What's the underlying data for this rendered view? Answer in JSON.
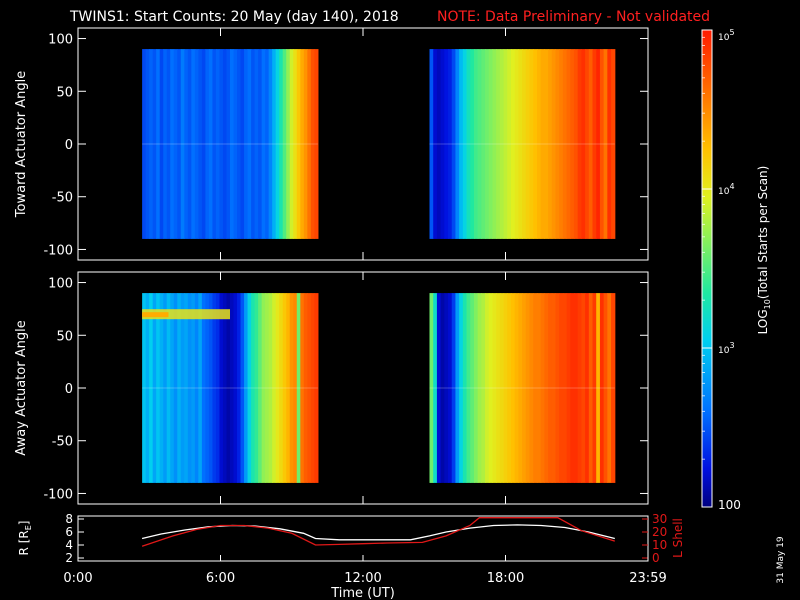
{
  "header": {
    "title": "TWINS1: Start Counts: 20 May (day 140), 2018",
    "note": "NOTE: Data Preliminary - Not validated"
  },
  "colors": {
    "background": "#000000",
    "note": "#ff2020",
    "axis": "#ffffff",
    "r_line": "#ffffff",
    "lshell_line": "#e01818"
  },
  "panels": {
    "toward": {
      "ylabel": "Toward Actuator Angle"
    },
    "away": {
      "ylabel": "Away Actuator Angle"
    },
    "orbit": {
      "ylabel": "R [R",
      "ylabel_sub": "E",
      "ylabel_end": "]",
      "y2label": "L Shell"
    }
  },
  "colorbar": {
    "label_pre": "LOG",
    "label_sub": "10",
    "label_post": "(Total Starts per Scan)",
    "ticks": [
      {
        "text": "100",
        "value": 100,
        "exp": ""
      },
      {
        "text": "10",
        "value": 1000,
        "exp": "3"
      },
      {
        "text": "10",
        "value": 10000,
        "exp": "4"
      },
      {
        "text": "10",
        "value": 100000,
        "exp": "5"
      }
    ]
  },
  "footer": {
    "stamp": "31 May 19"
  },
  "chart_data": [
    {
      "type": "heatmap",
      "title": "TWINS1: Start Counts: 20 May (day 140), 2018",
      "ylabel": "Toward Actuator Angle",
      "xlabel": "Time (UT)",
      "xlim": [
        0,
        24
      ],
      "ylim": [
        -110,
        110
      ],
      "yticks": [
        "-100",
        "-50",
        "0",
        "50",
        "100"
      ],
      "xticks": [
        "0:00",
        "6:00",
        "12:00",
        "18:00",
        "23:59"
      ],
      "color_scale": "log",
      "clim": [
        100,
        100000
      ],
      "angle_range": [
        -90,
        90
      ],
      "data_intervals": [
        {
          "start_hour": 2.7,
          "end_hour": 10.1,
          "time_profile_log_counts": [
            2.45,
            2.5,
            2.55,
            2.5,
            2.6,
            2.45,
            2.55,
            2.5,
            2.6,
            2.55,
            2.5,
            2.65,
            2.55,
            2.5,
            2.6,
            2.55,
            2.5,
            2.45,
            2.55,
            2.6,
            2.5,
            2.55,
            2.5,
            2.45,
            2.5,
            2.6,
            2.55,
            2.5,
            2.45,
            2.55,
            2.6,
            2.5,
            2.55,
            2.5,
            2.6,
            2.55,
            2.7,
            2.9,
            3.1,
            3.3,
            3.5,
            3.7,
            3.9,
            4.05,
            4.2,
            4.35,
            4.45,
            4.6,
            4.75,
            4.8
          ]
        },
        {
          "start_hour": 14.8,
          "end_hour": 22.6,
          "time_profile_log_counts": [
            2.5,
            2.2,
            2.15,
            2.2,
            2.25,
            2.3,
            2.45,
            2.7,
            2.95,
            3.1,
            3.25,
            3.35,
            3.45,
            3.5,
            3.55,
            3.6,
            3.65,
            3.7,
            3.75,
            3.8,
            3.85,
            3.9,
            3.95,
            4.0,
            4.05,
            4.1,
            4.15,
            4.2,
            4.25,
            4.3,
            4.35,
            4.35,
            4.4,
            4.45,
            4.5,
            4.55,
            4.6,
            4.65,
            4.7,
            4.75,
            4.85,
            4.9,
            4.8,
            4.7,
            4.85,
            4.95,
            4.75,
            4.6,
            4.9,
            4.8
          ]
        }
      ]
    },
    {
      "type": "heatmap",
      "ylabel": "Away Actuator Angle",
      "xlabel": "Time (UT)",
      "xlim": [
        0,
        24
      ],
      "ylim": [
        -110,
        110
      ],
      "yticks": [
        "-100",
        "-50",
        "0",
        "50",
        "100"
      ],
      "xticks": [
        "0:00",
        "6:00",
        "12:00",
        "18:00",
        "23:59"
      ],
      "color_scale": "log",
      "clim": [
        100,
        100000
      ],
      "angle_range": [
        -90,
        90
      ],
      "data_intervals": [
        {
          "start_hour": 2.7,
          "end_hour": 10.1,
          "time_profile_log_counts": [
            3.0,
            2.9,
            3.05,
            2.85,
            3.0,
            2.9,
            2.8,
            2.95,
            2.85,
            2.75,
            2.9,
            2.8,
            2.85,
            2.75,
            2.8,
            2.7,
            2.85,
            2.6,
            2.55,
            2.5,
            2.4,
            2.35,
            2.2,
            2.15,
            2.1,
            2.15,
            2.2,
            2.3,
            2.5,
            2.8,
            3.1,
            3.3,
            3.4,
            3.55,
            3.7,
            3.75,
            3.8,
            3.9,
            4.0,
            4.1,
            4.2,
            4.3,
            4.45,
            4.5,
            3.6,
            4.6,
            4.7,
            4.75,
            4.8,
            4.85
          ],
          "bright_band_angle_deg": 70
        },
        {
          "start_hour": 14.8,
          "end_hour": 22.6,
          "time_profile_log_counts": [
            3.6,
            3.2,
            2.2,
            2.1,
            2.15,
            2.2,
            2.4,
            2.8,
            3.1,
            3.3,
            3.45,
            3.55,
            3.65,
            3.75,
            3.8,
            3.9,
            3.95,
            4.0,
            4.05,
            4.1,
            4.15,
            4.2,
            4.25,
            4.3,
            4.35,
            4.4,
            4.45,
            4.5,
            4.55,
            4.55,
            4.6,
            4.65,
            4.7,
            4.7,
            4.75,
            4.8,
            4.8,
            4.85,
            4.9,
            4.9,
            4.85,
            4.8,
            4.9,
            4.7,
            4.85,
            4.3,
            4.9,
            4.75,
            4.6,
            4.8
          ]
        }
      ]
    },
    {
      "type": "line",
      "ylabel": "R [RE]",
      "y2label": "L Shell",
      "xlabel": "Time (UT)",
      "xlim": [
        0,
        24
      ],
      "ylim": [
        2,
        8
      ],
      "yticks": [
        "2",
        "4",
        "6",
        "8"
      ],
      "y2lim": [
        0,
        30
      ],
      "y2ticks": [
        "0",
        "10",
        "20",
        "30"
      ],
      "xticks": [
        "0:00",
        "6:00",
        "12:00",
        "18:00",
        "23:59"
      ],
      "series": [
        {
          "axis": "left",
          "x": [
            2.7,
            3.5,
            4.5,
            5.5,
            6.5,
            7.5,
            8.5,
            9.5,
            10.0,
            11,
            12,
            13,
            14,
            14.8,
            15.5,
            16.5,
            17.5,
            18.5,
            19.5,
            20.5,
            21.5,
            22.6
          ],
          "y": [
            5.0,
            5.7,
            6.3,
            6.8,
            7.0,
            6.9,
            6.5,
            5.8,
            5.0,
            4.8,
            4.8,
            4.8,
            4.8,
            5.4,
            6.0,
            6.6,
            7.0,
            7.1,
            7.0,
            6.7,
            6.0,
            5.0
          ]
        },
        {
          "axis": "right",
          "x": [
            2.7,
            4.0,
            5.0,
            6.0,
            7.0,
            8.0,
            9.0,
            10.0,
            11.0,
            12.0,
            13.0,
            14.5,
            15.5,
            16.5,
            16.9,
            20.2,
            21.2,
            22.6
          ],
          "y": [
            9,
            17,
            22,
            25,
            25,
            23,
            19,
            10,
            10.5,
            11,
            11.5,
            12,
            17,
            25,
            31,
            31,
            21,
            13
          ]
        }
      ]
    }
  ]
}
